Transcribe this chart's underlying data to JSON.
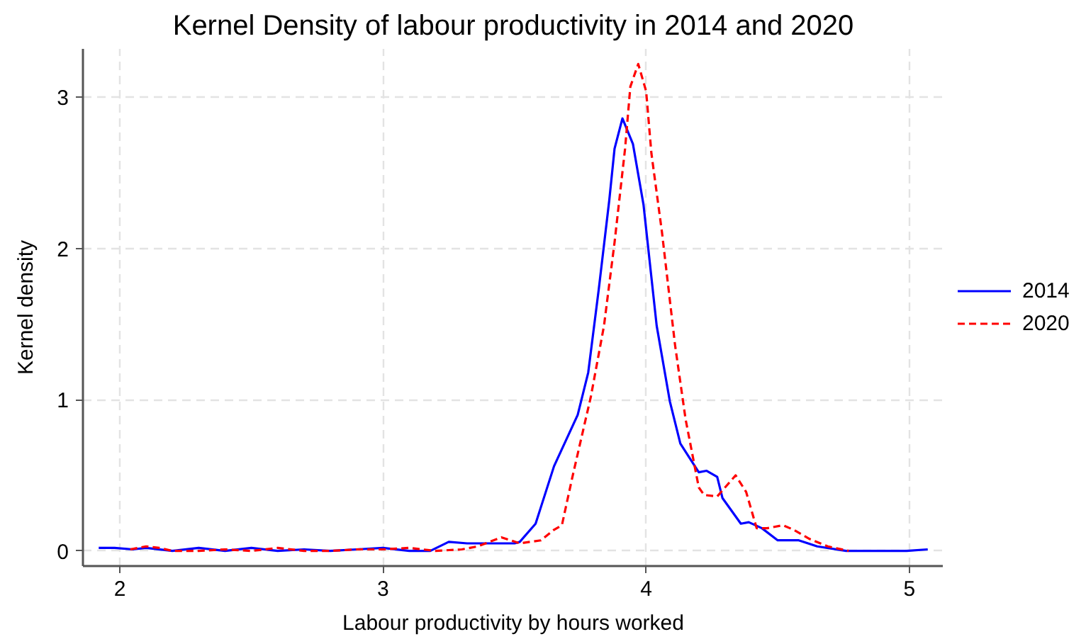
{
  "chart_data": {
    "type": "line",
    "title": "Kernel Density of labour productivity in 2014 and 2020",
    "xlabel": "Labour productivity by hours worked",
    "ylabel": "Kernel density",
    "xlim": [
      1.86,
      5.13
    ],
    "ylim": [
      -0.1,
      3.32
    ],
    "xticks": [
      2,
      3,
      4,
      5
    ],
    "yticks": [
      0,
      1,
      2,
      3
    ],
    "grid": true,
    "legend": "right",
    "series": [
      {
        "name": "2014",
        "color": "#0000ff",
        "line_style": "solid",
        "x": [
          1.92,
          1.98,
          2.05,
          2.1,
          2.2,
          2.3,
          2.4,
          2.5,
          2.6,
          2.7,
          2.8,
          2.9,
          3.0,
          3.1,
          3.18,
          3.25,
          3.32,
          3.42,
          3.5,
          3.52,
          3.58,
          3.65,
          3.74,
          3.78,
          3.82,
          3.86,
          3.88,
          3.91,
          3.95,
          3.99,
          4.04,
          4.09,
          4.13,
          4.2,
          4.23,
          4.27,
          4.29,
          4.36,
          4.39,
          4.44,
          4.5,
          4.58,
          4.65,
          4.76,
          4.99,
          5.07
        ],
        "values": [
          0.02,
          0.02,
          0.01,
          0.02,
          0.0,
          0.02,
          0.0,
          0.02,
          0.0,
          0.01,
          0.0,
          0.01,
          0.02,
          0.0,
          0.0,
          0.06,
          0.05,
          0.05,
          0.05,
          0.06,
          0.18,
          0.56,
          0.9,
          1.18,
          1.73,
          2.32,
          2.66,
          2.86,
          2.69,
          2.29,
          1.49,
          0.99,
          0.71,
          0.52,
          0.53,
          0.49,
          0.35,
          0.18,
          0.19,
          0.15,
          0.07,
          0.07,
          0.03,
          0.0,
          0.0,
          0.01
        ]
      },
      {
        "name": "2020",
        "color": "#ff0000",
        "line_style": "dashed",
        "x": [
          2.04,
          2.1,
          2.15,
          2.2,
          2.3,
          2.4,
          2.5,
          2.6,
          2.7,
          2.8,
          2.9,
          3.0,
          3.1,
          3.2,
          3.3,
          3.36,
          3.45,
          3.52,
          3.6,
          3.65,
          3.68,
          3.72,
          3.79,
          3.84,
          3.88,
          3.92,
          3.94,
          3.97,
          4.0,
          4.02,
          4.06,
          4.11,
          4.15,
          4.2,
          4.22,
          4.27,
          4.34,
          4.38,
          4.42,
          4.46,
          4.52,
          4.56,
          4.62,
          4.69,
          4.77
        ],
        "values": [
          0.01,
          0.03,
          0.02,
          0.0,
          0.0,
          0.01,
          0.0,
          0.02,
          0.0,
          0.0,
          0.01,
          0.01,
          0.02,
          0.0,
          0.01,
          0.03,
          0.09,
          0.05,
          0.07,
          0.14,
          0.17,
          0.49,
          1.02,
          1.49,
          2.04,
          2.66,
          3.07,
          3.22,
          3.04,
          2.63,
          2.11,
          1.36,
          0.87,
          0.42,
          0.37,
          0.36,
          0.5,
          0.39,
          0.15,
          0.15,
          0.17,
          0.14,
          0.08,
          0.03,
          0.0
        ]
      }
    ]
  }
}
